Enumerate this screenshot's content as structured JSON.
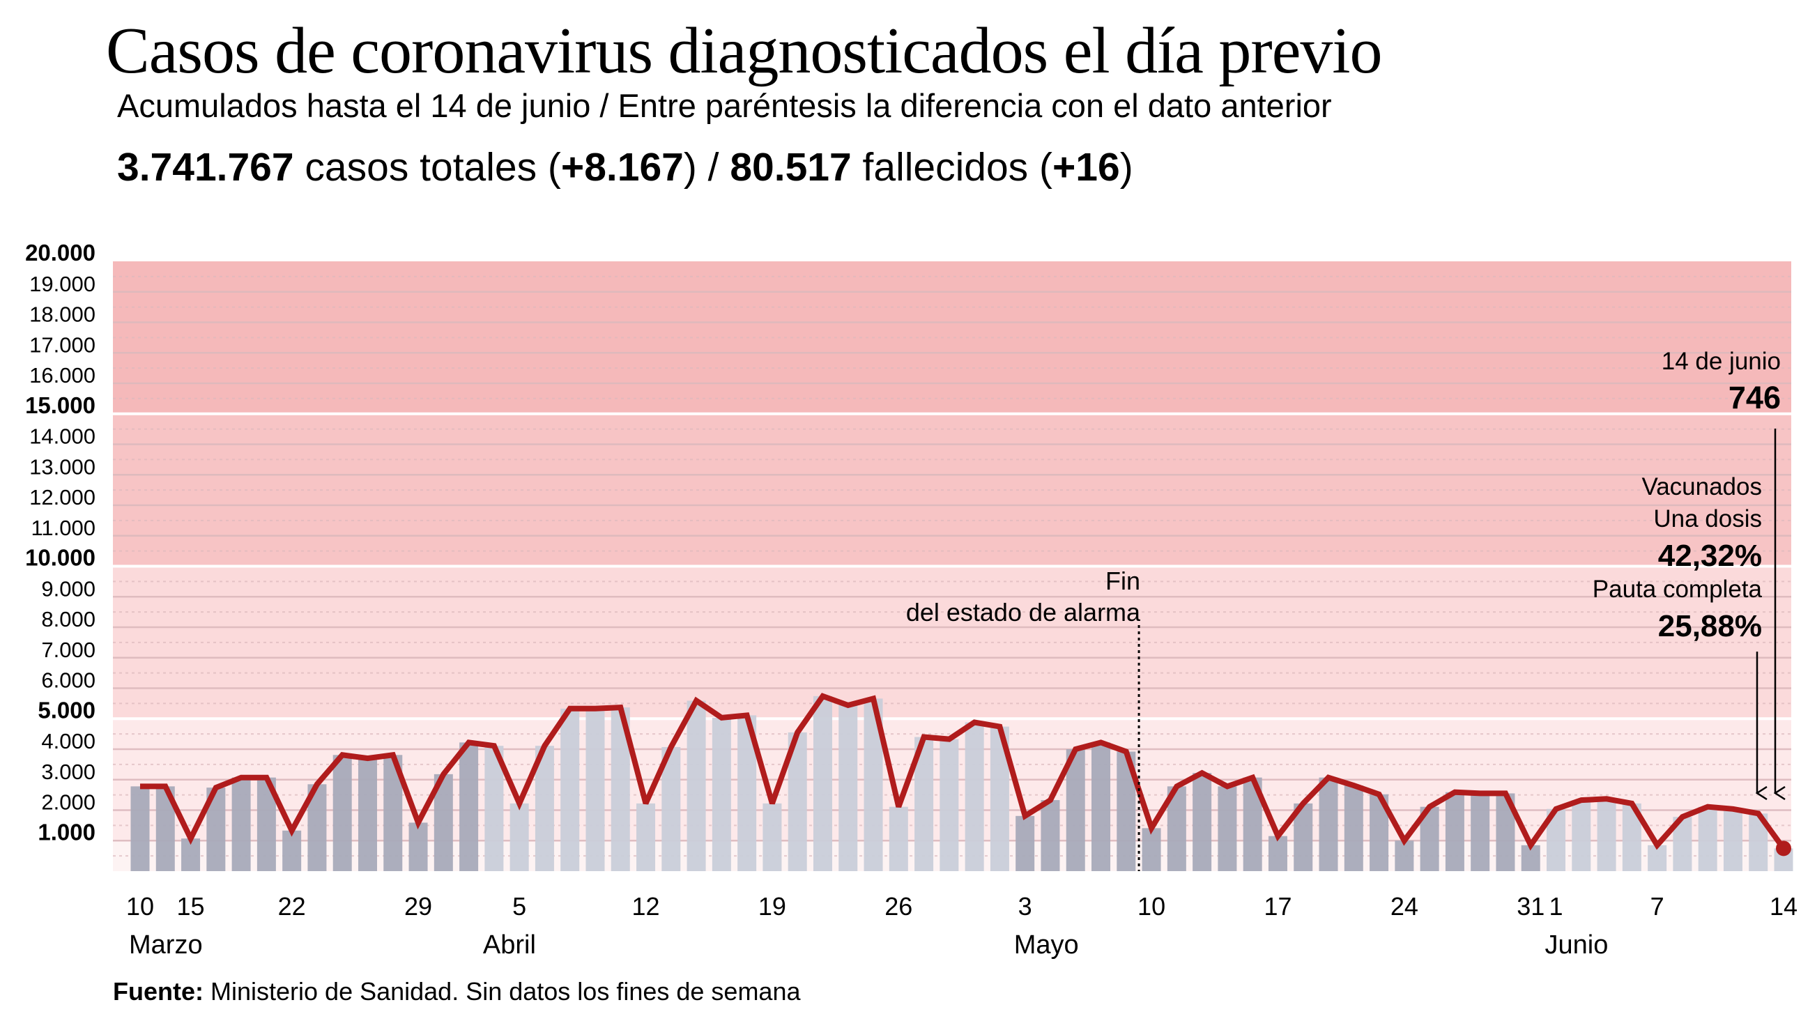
{
  "header": {
    "title": "Casos de coronavirus diagnosticados el día previo",
    "subtitle": "Acumulados hasta el 14 de junio / Entre paréntesis la diferencia con el dato anterior",
    "stats": {
      "cases_total": "3.741.767",
      "cases_label": " casos totales (",
      "cases_diff": "+8.167",
      "separator": ") / ",
      "deaths_total": "80.517",
      "deaths_label": " fallecidos (",
      "deaths_diff": "+16",
      "close": ")"
    }
  },
  "footer": {
    "source_label": "Fuente:",
    "source_text": " Ministerio de Sanidad. Sin datos los fines de semana"
  },
  "chart_data": {
    "type": "bar+line",
    "title": "Casos de coronavirus diagnosticados el día previo",
    "ylim": [
      0,
      20000
    ],
    "y_ticks": [
      {
        "value": 1000,
        "label": "1.000",
        "bold": true
      },
      {
        "value": 2000,
        "label": "2.000"
      },
      {
        "value": 3000,
        "label": "3.000"
      },
      {
        "value": 4000,
        "label": "4.000"
      },
      {
        "value": 5000,
        "label": "5.000",
        "bold": true
      },
      {
        "value": 6000,
        "label": "6.000"
      },
      {
        "value": 7000,
        "label": "7.000"
      },
      {
        "value": 8000,
        "label": "8.000"
      },
      {
        "value": 9000,
        "label": "9.000"
      },
      {
        "value": 10000,
        "label": "10.000",
        "bold": true
      },
      {
        "value": 11000,
        "label": "11.000"
      },
      {
        "value": 12000,
        "label": "12.000"
      },
      {
        "value": 13000,
        "label": "13.000"
      },
      {
        "value": 14000,
        "label": "14.000"
      },
      {
        "value": 15000,
        "label": "15.000",
        "bold": true
      },
      {
        "value": 16000,
        "label": "16.000"
      },
      {
        "value": 17000,
        "label": "17.000"
      },
      {
        "value": 18000,
        "label": "18.000"
      },
      {
        "value": 19000,
        "label": "19.000"
      },
      {
        "value": 20000,
        "label": "20.000",
        "bold": true
      }
    ],
    "grid": true,
    "bands": [
      {
        "from": 0,
        "to": 1000,
        "color": "#fdf3f3"
      },
      {
        "from": 1000,
        "to": 5000,
        "color": "#fde9ea"
      },
      {
        "from": 5000,
        "to": 10000,
        "color": "#fbdadb"
      },
      {
        "from": 10000,
        "to": 15000,
        "color": "#f7c4c5"
      },
      {
        "from": 15000,
        "to": 20000,
        "color": "#f5b9ba"
      }
    ],
    "x": [
      "10/3",
      "11/3",
      "15/3",
      "16/3",
      "17/3",
      "18/3",
      "22/3",
      "23/3",
      "24/3",
      "25/3",
      "26/3",
      "29/3",
      "30/3",
      "31/3",
      "1/4",
      "5/4",
      "6/4",
      "7/4",
      "8/4",
      "9/4",
      "12/4",
      "13/4",
      "14/4",
      "15/4",
      "16/4",
      "19/4",
      "20/4",
      "21/4",
      "22/4",
      "23/4",
      "26/4",
      "27/4",
      "28/4",
      "29/4",
      "30/4",
      "3/5",
      "4/5",
      "5/5",
      "6/5",
      "7/5",
      "10/5",
      "11/5",
      "12/5",
      "13/5",
      "14/5",
      "17/5",
      "18/5",
      "19/5",
      "20/5",
      "21/5",
      "24/5",
      "25/5",
      "26/5",
      "27/5",
      "28/5",
      "31/5",
      "1/6",
      "2/6",
      "3/6",
      "4/6",
      "7/6",
      "8/6",
      "9/6",
      "10/6",
      "11/6",
      "14/6"
    ],
    "values": [
      2780,
      2780,
      1070,
      2740,
      3070,
      3070,
      1330,
      2850,
      3810,
      3700,
      3810,
      1590,
      3180,
      4220,
      4110,
      2220,
      4110,
      5330,
      5330,
      5370,
      2220,
      4070,
      5590,
      5030,
      5110,
      2220,
      4550,
      5740,
      5440,
      5660,
      2110,
      4400,
      4330,
      4880,
      4740,
      1810,
      2330,
      4000,
      4220,
      3920,
      1410,
      2780,
      3220,
      2780,
      3070,
      1150,
      2220,
      3070,
      2810,
      2520,
      1000,
      2110,
      2590,
      2550,
      2550,
      850,
      2040,
      2330,
      2370,
      2220,
      850,
      1780,
      2110,
      2040,
      1890,
      746
    ],
    "x_ticks": [
      {
        "x": "10/3",
        "label": "10"
      },
      {
        "x": "15/3",
        "label": "15"
      },
      {
        "x": "22/3",
        "label": "22"
      },
      {
        "x": "29/3",
        "label": "29"
      },
      {
        "x": "5/4",
        "label": "5"
      },
      {
        "x": "12/4",
        "label": "12"
      },
      {
        "x": "19/4",
        "label": "19"
      },
      {
        "x": "26/4",
        "label": "26"
      },
      {
        "x": "3/5",
        "label": "3"
      },
      {
        "x": "10/5",
        "label": "10"
      },
      {
        "x": "17/5",
        "label": "17"
      },
      {
        "x": "24/5",
        "label": "24"
      },
      {
        "x": "31/5",
        "label": "31"
      },
      {
        "x": "1/6",
        "label": "1"
      },
      {
        "x": "7/6",
        "label": "7"
      },
      {
        "x": "14/6",
        "label": "14"
      }
    ],
    "months": [
      {
        "x": "10/3",
        "label": "Marzo"
      },
      {
        "x": "1/4",
        "label": "Abril"
      },
      {
        "x": "3/5",
        "label": "Mayo"
      },
      {
        "x": "1/6",
        "label": "Junio"
      }
    ],
    "colors": {
      "line": "#b01c1c",
      "bar_dark": "#a8aab9",
      "bar_light": "#c9ced9",
      "gridline": "#dcb9bd",
      "band_gap": "#ffffff"
    },
    "bar_shade_by_month": {
      "3": "dark",
      "4": "light",
      "5": "dark",
      "6": "light"
    },
    "annotations": {
      "alarm_end": {
        "x": "10/5",
        "line1": "Fin",
        "line2": "del estado de alarma"
      },
      "last_day": {
        "label": "14 de junio",
        "value": "746"
      },
      "vaccines": {
        "title": "Vacunados",
        "one_dose_label": "Una dosis",
        "one_dose_value": "42,32%",
        "full_label": "Pauta completa",
        "full_value": "25,88%"
      }
    }
  }
}
